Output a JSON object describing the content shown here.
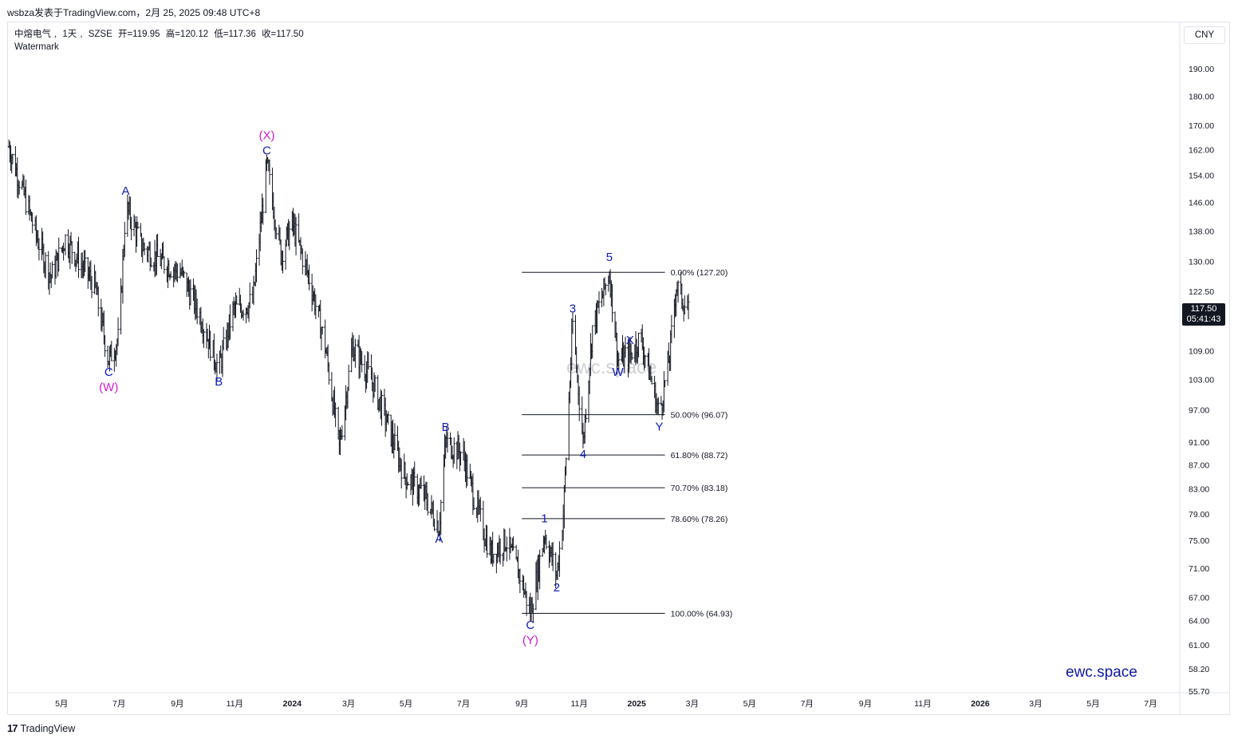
{
  "header": {
    "caption": "wsbza发表于TradingView.com，2月 25, 2025 09:48 UTC+8"
  },
  "legend": {
    "symbol": "中熔电气",
    "interval": "1天",
    "exchange": "SZSE",
    "open": "开=119.95",
    "high": "高=120.12",
    "low": "低=117.36",
    "close": "收=117.50",
    "watermark_label": "Watermark"
  },
  "currency_button": "CNY",
  "last_price": {
    "price": "117.50",
    "countdown": "05:41:43"
  },
  "brand": "ewc.space",
  "watermark": "ewc.space",
  "footer": {
    "logo": "17",
    "name": "TradingView"
  },
  "colors": {
    "candle": "#131722",
    "wave_blue": "#0d1ab8",
    "wave_magenta": "#d21ad2",
    "fib_line": "#131722",
    "brand": "#0d1aa6"
  },
  "chart_data": {
    "type": "line",
    "subtype": "ohlc-bars",
    "title": "中熔电气, 1天, SZSE",
    "y_scale": "log",
    "ylim": [
      55.7,
      198.0
    ],
    "y_ticks": [
      "190.00",
      "180.00",
      "170.00",
      "162.00",
      "154.00",
      "146.00",
      "138.00",
      "130.00",
      "122.50",
      "117.50",
      "109.00",
      "103.00",
      "97.00",
      "91.00",
      "87.00",
      "83.00",
      "79.00",
      "75.00",
      "71.00",
      "67.00",
      "64.00",
      "61.00",
      "58.20",
      "55.70"
    ],
    "x_ticks": [
      {
        "label": "5月",
        "date": "2023-05-01"
      },
      {
        "label": "7月",
        "date": "2023-07-01"
      },
      {
        "label": "9月",
        "date": "2023-09-01"
      },
      {
        "label": "11月",
        "date": "2023-11-01"
      },
      {
        "label": "2024",
        "date": "2024-01-01",
        "bold": true
      },
      {
        "label": "3月",
        "date": "2024-03-01"
      },
      {
        "label": "5月",
        "date": "2024-05-01"
      },
      {
        "label": "7月",
        "date": "2024-07-01"
      },
      {
        "label": "9月",
        "date": "2024-09-01"
      },
      {
        "label": "11月",
        "date": "2024-11-01"
      },
      {
        "label": "2025",
        "date": "2025-01-01",
        "bold": true
      },
      {
        "label": "3月",
        "date": "2025-03-01"
      },
      {
        "label": "5月",
        "date": "2025-05-01"
      },
      {
        "label": "7月",
        "date": "2025-07-01"
      },
      {
        "label": "9月",
        "date": "2025-09-01"
      },
      {
        "label": "11月",
        "date": "2025-11-01"
      },
      {
        "label": "2026",
        "date": "2026-01-01",
        "bold": true
      },
      {
        "label": "3月",
        "date": "2026-03-01"
      },
      {
        "label": "5月",
        "date": "2026-05-01"
      },
      {
        "label": "7月",
        "date": "2026-07-01"
      }
    ],
    "x_range": [
      "2023-03-05",
      "2026-08-01"
    ],
    "price_path": [
      [
        "2023-03-06",
        163
      ],
      [
        "2023-03-20",
        150
      ],
      [
        "2023-04-05",
        136
      ],
      [
        "2023-04-20",
        126
      ],
      [
        "2023-05-05",
        136
      ],
      [
        "2023-05-20",
        130
      ],
      [
        "2023-06-05",
        124
      ],
      [
        "2023-06-20",
        107
      ],
      [
        "2023-07-01",
        112
      ],
      [
        "2023-07-08",
        145
      ],
      [
        "2023-07-25",
        134
      ],
      [
        "2023-08-15",
        130
      ],
      [
        "2023-09-05",
        127
      ],
      [
        "2023-09-25",
        117
      ],
      [
        "2023-10-15",
        105
      ],
      [
        "2023-10-30",
        118
      ],
      [
        "2023-11-20",
        120
      ],
      [
        "2023-12-05",
        157
      ],
      [
        "2023-12-20",
        132
      ],
      [
        "2024-01-01",
        140
      ],
      [
        "2024-01-20",
        125
      ],
      [
        "2024-02-05",
        110
      ],
      [
        "2024-02-20",
        90
      ],
      [
        "2024-03-05",
        110
      ],
      [
        "2024-03-25",
        103
      ],
      [
        "2024-04-10",
        95
      ],
      [
        "2024-04-30",
        85
      ],
      [
        "2024-05-20",
        82
      ],
      [
        "2024-06-05",
        77
      ],
      [
        "2024-06-12",
        91
      ],
      [
        "2024-06-30",
        89
      ],
      [
        "2024-07-15",
        80
      ],
      [
        "2024-07-30",
        73
      ],
      [
        "2024-08-15",
        75
      ],
      [
        "2024-08-30",
        70
      ],
      [
        "2024-09-10",
        65
      ],
      [
        "2024-09-25",
        76
      ],
      [
        "2024-10-08",
        70
      ],
      [
        "2024-10-15",
        79
      ],
      [
        "2024-10-25",
        115
      ],
      [
        "2024-11-05",
        91
      ],
      [
        "2024-11-15",
        114
      ],
      [
        "2024-11-25",
        121
      ],
      [
        "2024-12-03",
        127.2
      ],
      [
        "2024-12-12",
        107
      ],
      [
        "2024-12-25",
        108
      ],
      [
        "2025-01-05",
        112
      ],
      [
        "2025-01-15",
        104
      ],
      [
        "2025-01-25",
        96.1
      ],
      [
        "2025-02-05",
        108
      ],
      [
        "2025-02-12",
        124
      ],
      [
        "2025-02-25",
        117.5
      ]
    ],
    "fib_levels": [
      {
        "label": "0.00% (127.20)",
        "value": 127.2
      },
      {
        "label": "50.00% (96.07)",
        "value": 96.07
      },
      {
        "label": "61.80% (88.72)",
        "value": 88.72
      },
      {
        "label": "70.70% (83.18)",
        "value": 83.18
      },
      {
        "label": "78.60% (78.26)",
        "value": 78.26
      },
      {
        "label": "100.00% (64.93)",
        "value": 64.93
      }
    ],
    "fib_range": [
      "2024-09-01",
      "2025-01-31"
    ],
    "wave_labels": [
      {
        "text": "C",
        "date": "2023-06-20",
        "price": 107,
        "pos": "below",
        "color": "blue"
      },
      {
        "text": "(W)",
        "date": "2023-06-20",
        "price": 107,
        "pos": "below2",
        "color": "magenta"
      },
      {
        "text": "A",
        "date": "2023-07-08",
        "price": 145,
        "pos": "above",
        "color": "blue"
      },
      {
        "text": "B",
        "date": "2023-10-15",
        "price": 105,
        "pos": "below",
        "color": "blue"
      },
      {
        "text": "C",
        "date": "2023-12-05",
        "price": 157,
        "pos": "above",
        "color": "blue"
      },
      {
        "text": "(X)",
        "date": "2023-12-05",
        "price": 157,
        "pos": "above2",
        "color": "magenta"
      },
      {
        "text": "A",
        "date": "2024-06-05",
        "price": 77,
        "pos": "below",
        "color": "blue"
      },
      {
        "text": "B",
        "date": "2024-06-12",
        "price": 91,
        "pos": "above",
        "color": "blue"
      },
      {
        "text": "C",
        "date": "2024-09-10",
        "price": 65,
        "pos": "below",
        "color": "blue"
      },
      {
        "text": "(Y)",
        "date": "2024-09-10",
        "price": 65,
        "pos": "below2",
        "color": "magenta"
      },
      {
        "text": "1",
        "date": "2024-09-25",
        "price": 76,
        "pos": "above",
        "color": "blue"
      },
      {
        "text": "2",
        "date": "2024-10-08",
        "price": 70,
        "pos": "below",
        "color": "blue"
      },
      {
        "text": "3",
        "date": "2024-10-25",
        "price": 115,
        "pos": "above",
        "color": "blue"
      },
      {
        "text": "4",
        "date": "2024-11-05",
        "price": 91,
        "pos": "below",
        "color": "blue"
      },
      {
        "text": "5",
        "date": "2024-12-03",
        "price": 127.2,
        "pos": "above",
        "color": "blue"
      },
      {
        "text": "W",
        "date": "2024-12-12",
        "price": 107,
        "pos": "below",
        "color": "blue"
      },
      {
        "text": "X",
        "date": "2024-12-25",
        "price": 108,
        "pos": "above",
        "color": "blue"
      },
      {
        "text": "Y",
        "date": "2025-01-25",
        "price": 96.1,
        "pos": "below",
        "color": "blue"
      }
    ],
    "last_close": 117.5
  }
}
